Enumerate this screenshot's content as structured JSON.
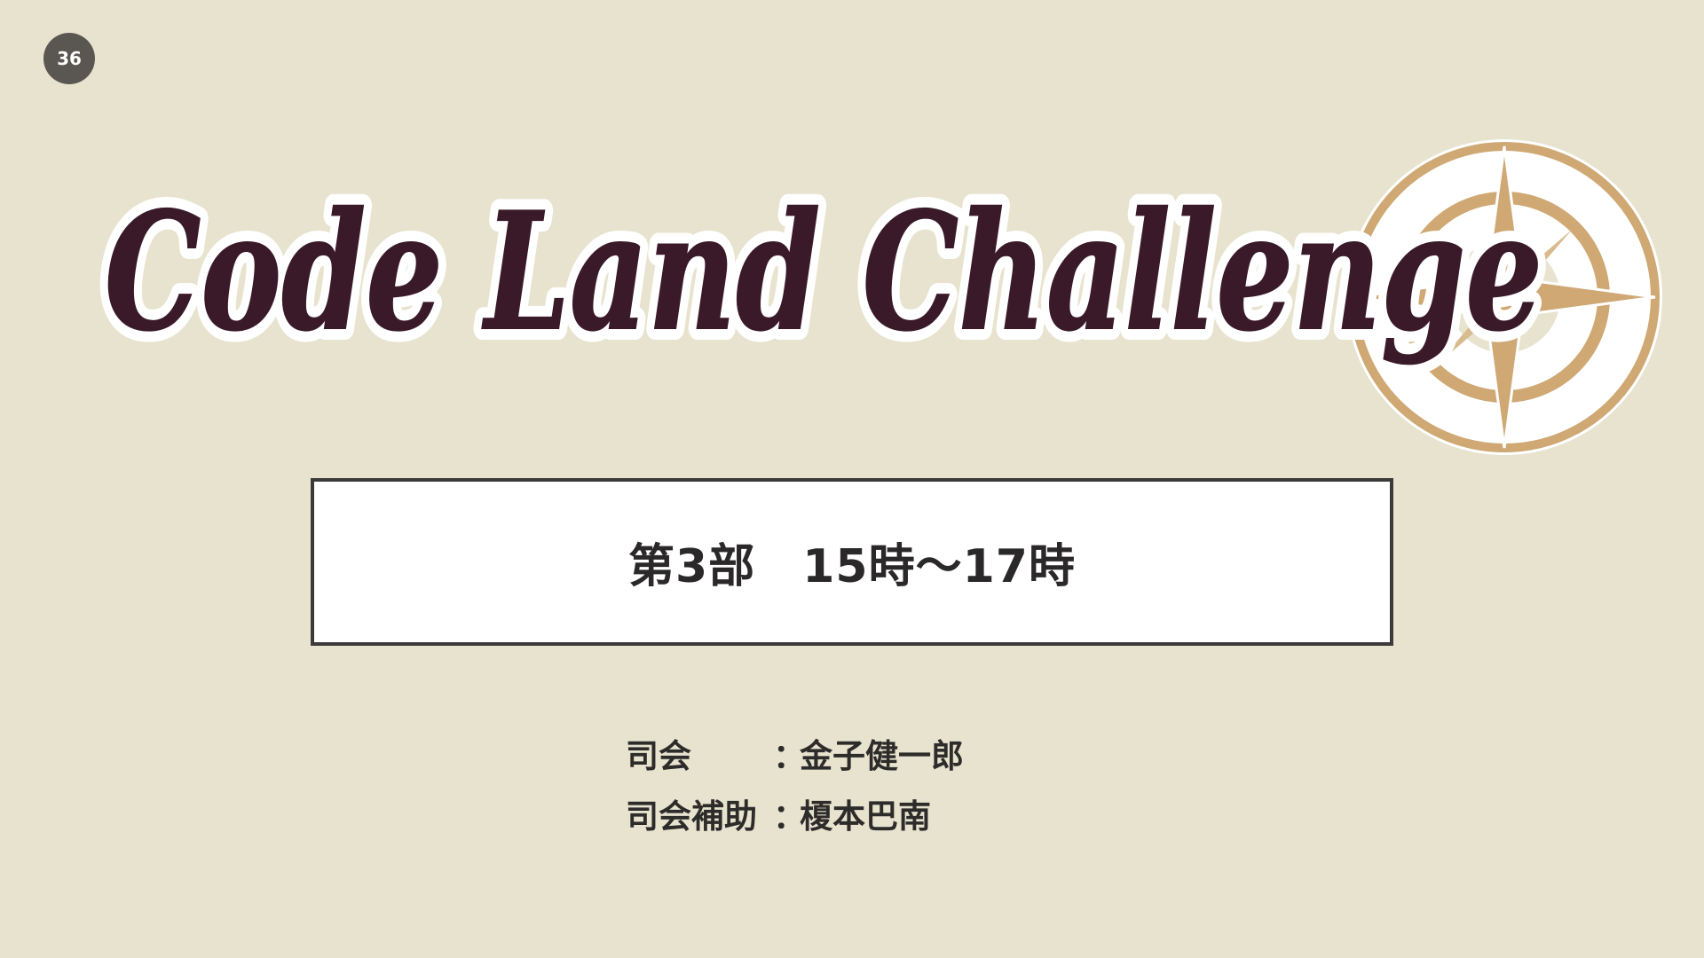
{
  "slide": {
    "page_number": "36",
    "title": "Code Land Challenge",
    "schedule": "第3部　15時～17時",
    "staff": [
      {
        "role": "司会",
        "colon": "：",
        "name": "金子健一郎"
      },
      {
        "role": "司会補助",
        "colon": "：",
        "name": "榎本巴南"
      }
    ]
  },
  "colors": {
    "background": "#e8e3cf",
    "title_fill": "#3a1a29",
    "title_outline": "#ffffff",
    "compass_gold": "#cfa874",
    "badge": "#5a5752",
    "box_border": "#3d3b39"
  },
  "icons": {
    "emblem": "compass-rose-icon"
  }
}
